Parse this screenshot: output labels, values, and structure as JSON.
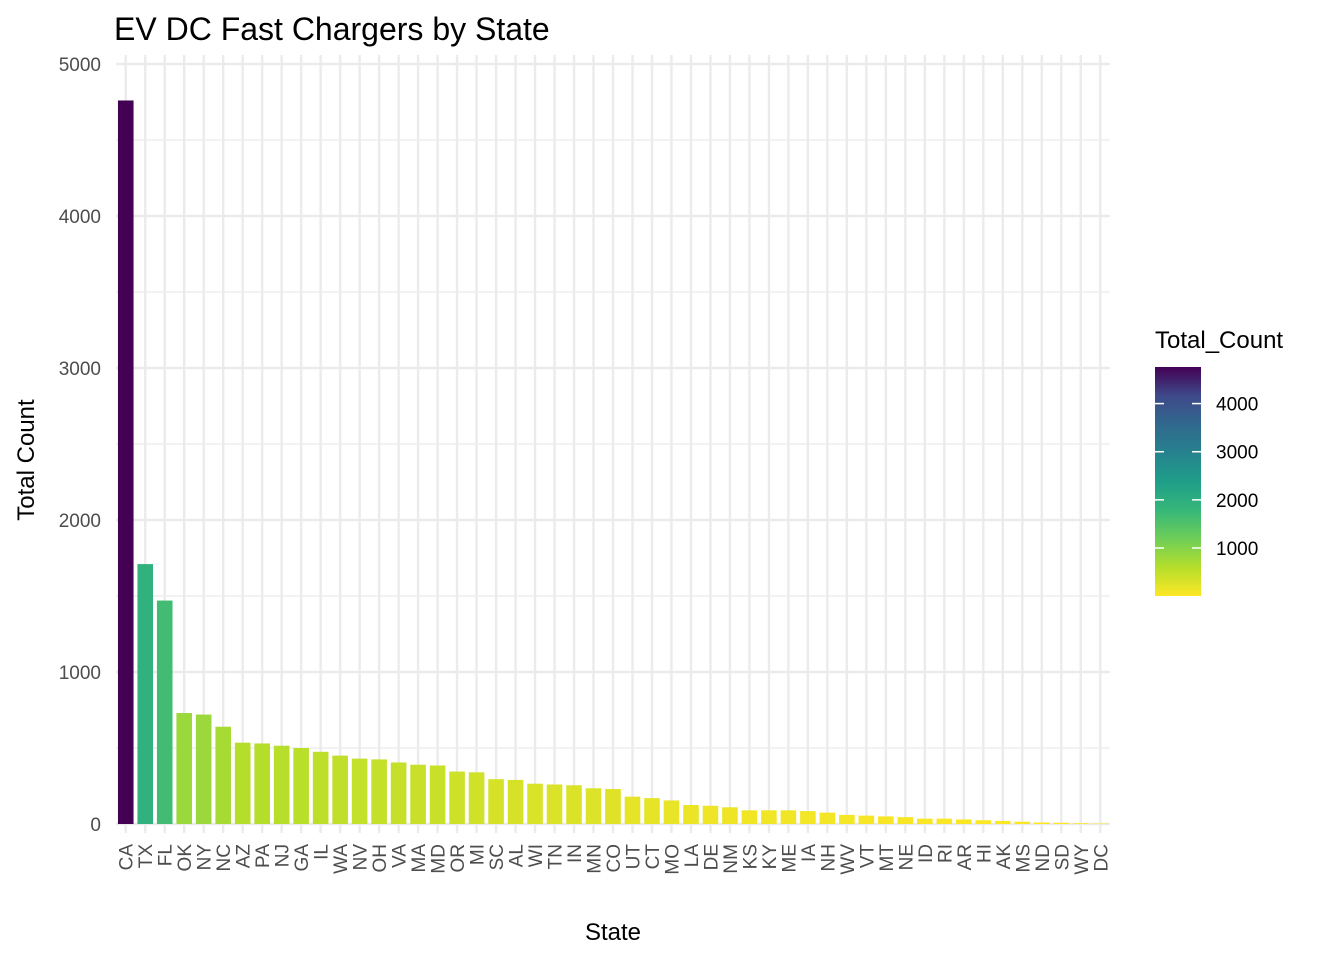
{
  "chart_data": {
    "type": "bar",
    "title": "EV DC Fast Chargers by State",
    "xlabel": "State",
    "ylabel": "Total Count",
    "ylim": [
      0,
      5000
    ],
    "yticks": [
      0,
      1000,
      2000,
      3000,
      4000,
      5000
    ],
    "grid": true,
    "legend": {
      "title": "Total_Count",
      "placement": "right",
      "type": "continuous-colorbar",
      "ticks": [
        1000,
        2000,
        3000,
        4000
      ],
      "range": [
        3,
        4760
      ],
      "palette": "viridis (reversed)"
    },
    "categories": [
      "CA",
      "TX",
      "FL",
      "OK",
      "NY",
      "NC",
      "AZ",
      "PA",
      "NJ",
      "GA",
      "IL",
      "WA",
      "NV",
      "OH",
      "VA",
      "MA",
      "MD",
      "OR",
      "MI",
      "SC",
      "AL",
      "WI",
      "TN",
      "IN",
      "MN",
      "CO",
      "UT",
      "CT",
      "MO",
      "LA",
      "DE",
      "NM",
      "KS",
      "KY",
      "ME",
      "IA",
      "NH",
      "WV",
      "VT",
      "MT",
      "NE",
      "ID",
      "RI",
      "AR",
      "HI",
      "AK",
      "MS",
      "ND",
      "SD",
      "WY",
      "DC"
    ],
    "values": [
      4760,
      1710,
      1470,
      730,
      720,
      640,
      535,
      530,
      515,
      500,
      475,
      450,
      430,
      425,
      405,
      390,
      385,
      345,
      340,
      295,
      290,
      265,
      260,
      255,
      235,
      230,
      180,
      170,
      155,
      125,
      120,
      110,
      90,
      90,
      90,
      85,
      75,
      60,
      55,
      50,
      45,
      35,
      35,
      30,
      25,
      20,
      15,
      10,
      8,
      5,
      3
    ]
  }
}
